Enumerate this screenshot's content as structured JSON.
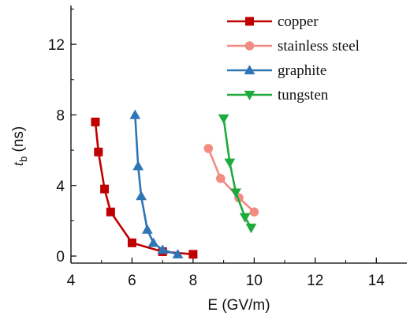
{
  "chart_data": {
    "type": "line",
    "xlabel": "E (GV/m)",
    "ylabel": "t_b (ns)",
    "ylabel_main": "t",
    "ylabel_sub": "b",
    "ylabel_unit": " (ns)",
    "xlim": [
      4,
      15
    ],
    "ylim": [
      -0.4,
      14.2
    ],
    "xticks": [
      "4",
      "6",
      "8",
      "10",
      "12",
      "14"
    ],
    "xtick_values": [
      4,
      6,
      8,
      10,
      12,
      14
    ],
    "yticks": [
      "0",
      "4",
      "8",
      "12"
    ],
    "ytick_values": [
      0,
      4,
      8,
      12
    ],
    "legend_position": "top-right",
    "series": [
      {
        "name": "copper",
        "color": "#c00000",
        "marker": "square",
        "x": [
          4.8,
          4.9,
          5.1,
          5.3,
          6.0,
          7.0,
          8.0
        ],
        "y": [
          7.6,
          5.9,
          3.8,
          2.5,
          0.75,
          0.25,
          0.1
        ]
      },
      {
        "name": "stainless steel",
        "color": "#f28b82",
        "marker": "circle",
        "x": [
          8.5,
          8.9,
          9.5,
          10.0
        ],
        "y": [
          6.1,
          4.4,
          3.3,
          2.5
        ]
      },
      {
        "name": "graphite",
        "color": "#2e75b6",
        "marker": "triangle-up",
        "x": [
          6.1,
          6.2,
          6.3,
          6.5,
          6.7,
          7.0,
          7.5
        ],
        "y": [
          8.0,
          5.1,
          3.4,
          1.5,
          0.75,
          0.35,
          0.1
        ]
      },
      {
        "name": "tungsten",
        "color": "#1eaa3c",
        "marker": "triangle-down",
        "x": [
          9.0,
          9.2,
          9.4,
          9.7,
          9.9
        ],
        "y": [
          7.8,
          5.3,
          3.6,
          2.2,
          1.6
        ]
      }
    ]
  }
}
